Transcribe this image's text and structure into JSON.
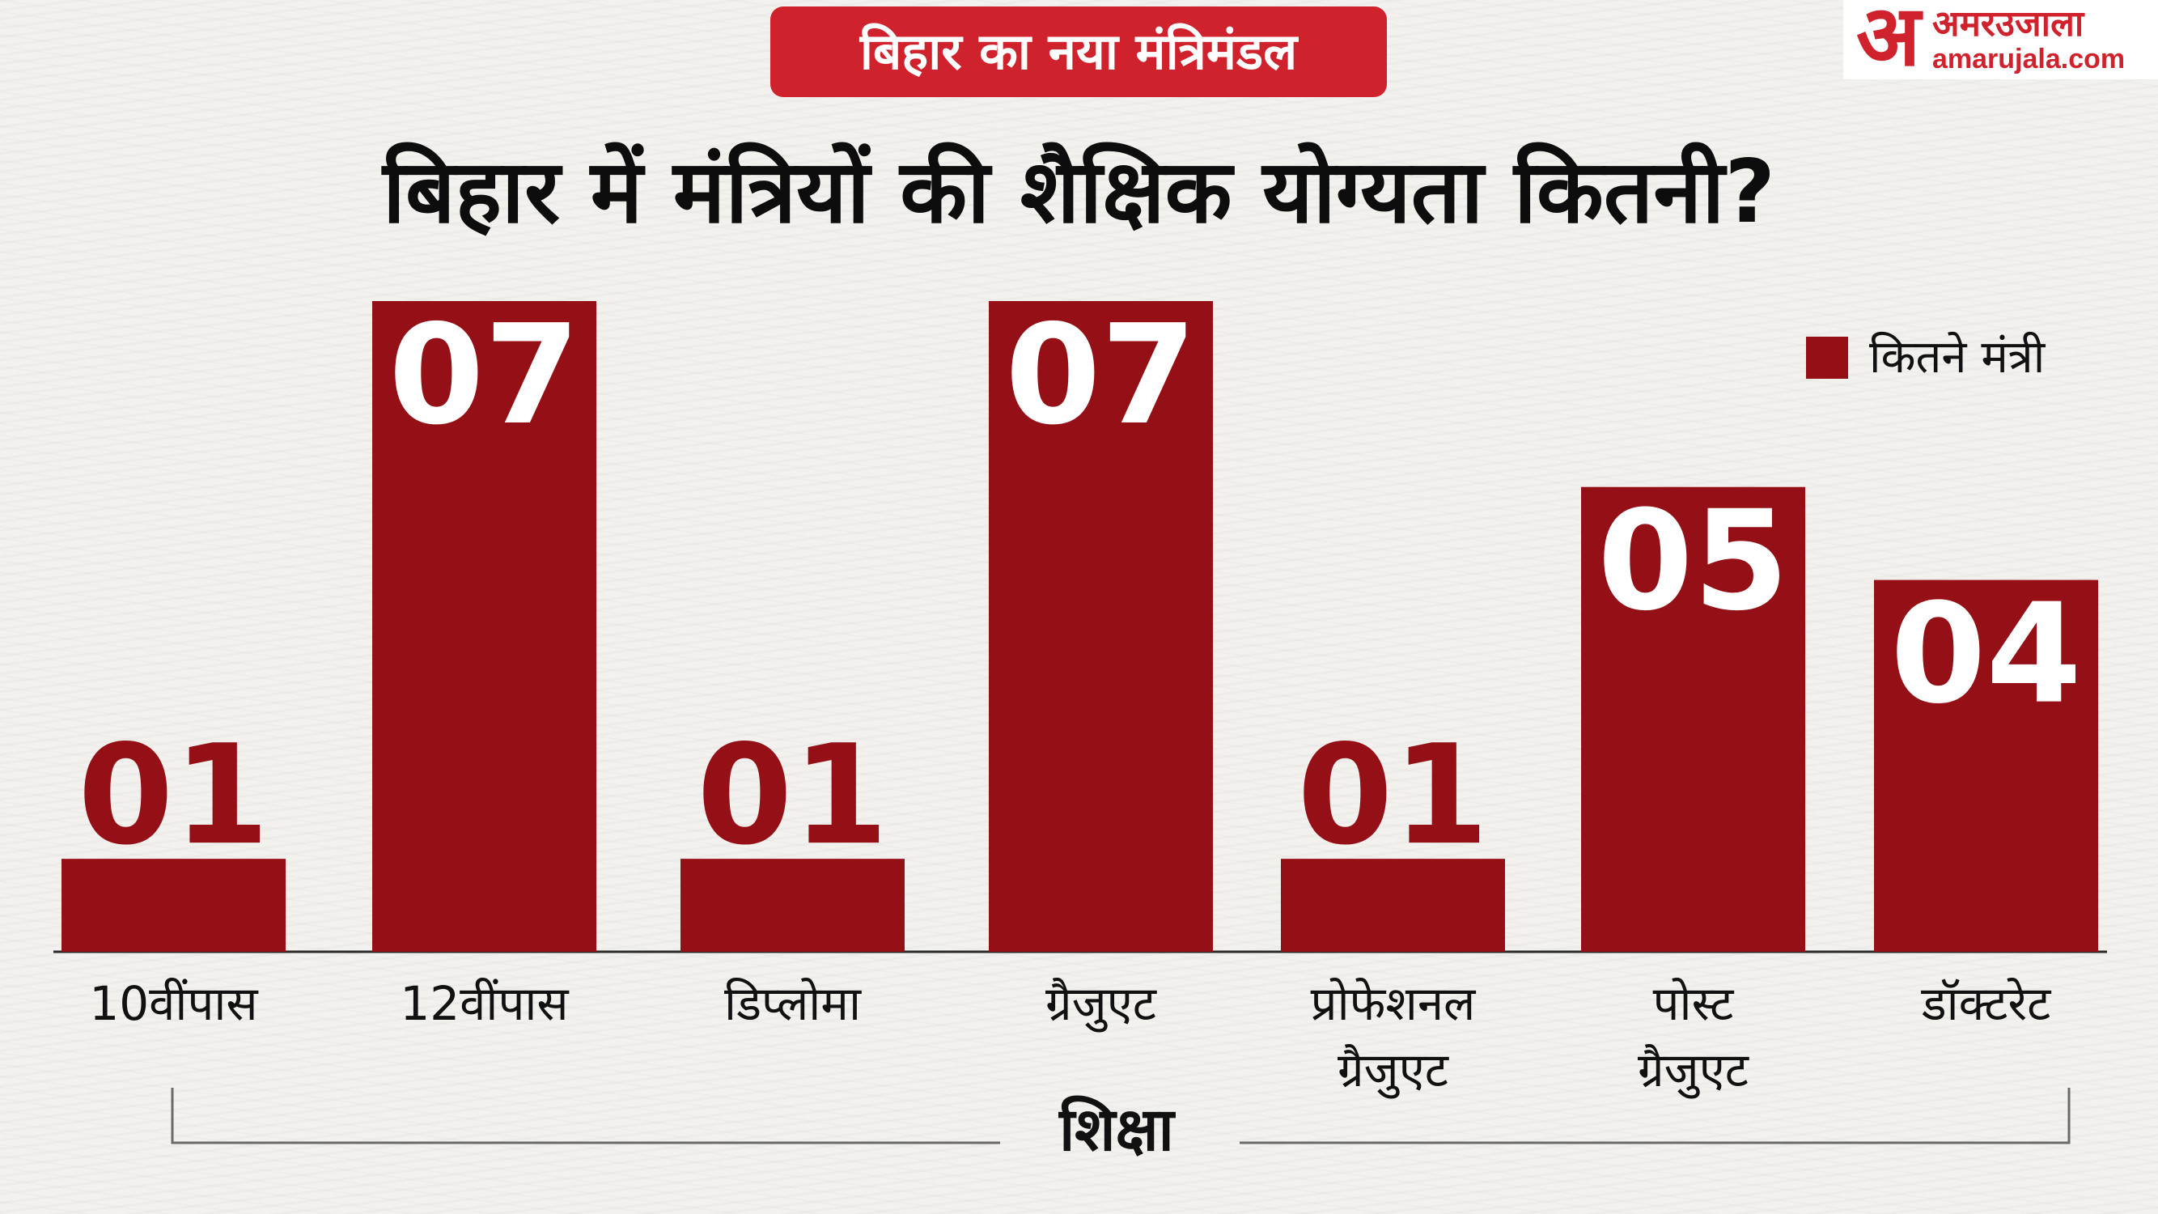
{
  "header": {
    "tag": "बिहार का नया मंत्रिमंडल",
    "title": "बिहार में मंत्रियों की शैक्षिक योग्यता कितनी?"
  },
  "logo": {
    "mark": "अ",
    "name": "अमरउजाला",
    "url": "amarujala.com"
  },
  "colors": {
    "bar": "#951016",
    "tag": "#d0222d",
    "text": "#111111",
    "value_text": "#951016",
    "value_text_inside": "#ffffff"
  },
  "chart_data": {
    "type": "bar",
    "title": "बिहार में मंत्रियों की शैक्षिक योग्यता कितनी?",
    "xlabel": "शिक्षा",
    "ylabel": "",
    "categories": [
      [
        "10वींपास"
      ],
      [
        "12वींपास"
      ],
      [
        "डिप्लोमा"
      ],
      [
        "ग्रैजुएट"
      ],
      [
        "प्रोफेशनल",
        "ग्रैजुएट"
      ],
      [
        "पोस्ट",
        "ग्रैजुएट"
      ],
      [
        "डॉक्टरेट"
      ]
    ],
    "series": [
      {
        "name": "कितने मंत्री",
        "values": [
          1,
          7,
          1,
          7,
          1,
          5,
          4
        ],
        "labels": [
          "01",
          "07",
          "01",
          "07",
          "01",
          "05",
          "04"
        ]
      }
    ],
    "ylim": [
      0,
      7
    ],
    "grid": false,
    "legend": "top-right"
  }
}
